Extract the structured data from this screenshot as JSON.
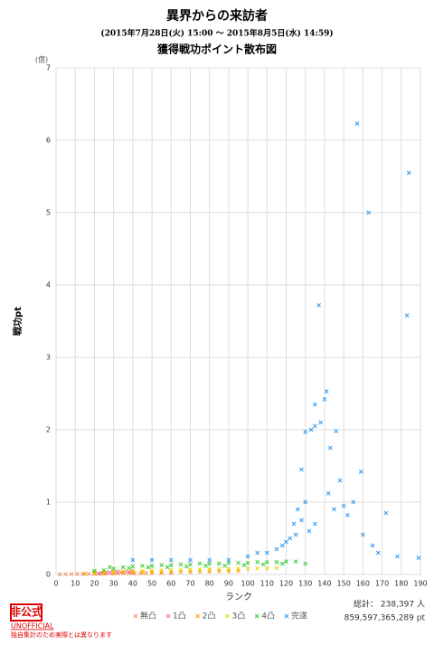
{
  "chart_data": {
    "type": "scatter",
    "title": "異界からの来訪者",
    "subtitle": "(2015年7月28日(火) 15:00 ～ 2015年8月5日(水) 14:59)",
    "chart_title": "獲得戦功ポイント散布図",
    "unit": "(億)",
    "x_label": "ランク",
    "y_label": "戦功pt",
    "xlim": [
      0,
      190
    ],
    "ylim": [
      0,
      7
    ],
    "xticks": [
      0,
      10,
      20,
      30,
      40,
      50,
      60,
      70,
      80,
      90,
      100,
      110,
      120,
      130,
      140,
      150,
      160,
      170,
      180,
      190
    ],
    "yticks": [
      0,
      1,
      2,
      3,
      4,
      5,
      6,
      7
    ],
    "grid": true,
    "legend": "bottom",
    "series": [
      {
        "name": "無凸",
        "color": "#f0906a",
        "x": [
          2,
          5,
          8,
          11,
          14,
          17,
          20,
          23,
          26,
          29,
          32,
          35,
          38,
          41,
          44,
          47,
          50,
          55,
          60
        ],
        "values": [
          0.003,
          0.004,
          0.005,
          0.006,
          0.007,
          0.008,
          0.009,
          0.01,
          0.012,
          0.013,
          0.014,
          0.015,
          0.016,
          0.017,
          0.018,
          0.019,
          0.02,
          0.02,
          0.02
        ]
      },
      {
        "name": "1凸",
        "color": "#ff6699",
        "x": [
          20,
          22,
          24,
          26,
          28,
          30,
          32,
          34,
          36,
          38,
          40
        ],
        "values": [
          0.01,
          0.015,
          0.02,
          0.025,
          0.03,
          0.035,
          0.04,
          0.03,
          0.035,
          0.04,
          0.04
        ]
      },
      {
        "name": "2凸",
        "color": "#ff9900",
        "x": [
          15,
          20,
          25,
          30,
          35,
          40,
          45,
          50,
          55,
          60,
          65,
          70,
          75,
          80,
          85,
          90,
          95
        ],
        "values": [
          0.01,
          0.012,
          0.015,
          0.018,
          0.02,
          0.022,
          0.025,
          0.027,
          0.03,
          0.032,
          0.035,
          0.037,
          0.04,
          0.042,
          0.045,
          0.047,
          0.05
        ]
      },
      {
        "name": "3凸",
        "color": "#e6d400",
        "x": [
          20,
          25,
          30,
          35,
          40,
          45,
          50,
          55,
          60,
          65,
          70,
          75,
          80,
          85,
          90,
          95,
          100,
          105,
          110,
          115
        ],
        "values": [
          0.03,
          0.035,
          0.04,
          0.045,
          0.05,
          0.05,
          0.055,
          0.06,
          0.06,
          0.065,
          0.065,
          0.07,
          0.07,
          0.075,
          0.075,
          0.08,
          0.08,
          0.085,
          0.085,
          0.09
        ]
      },
      {
        "name": "4凸",
        "color": "#33cc33",
        "x": [
          20,
          25,
          30,
          35,
          40,
          45,
          50,
          55,
          60,
          65,
          70,
          75,
          80,
          85,
          90,
          95,
          100,
          105,
          110,
          115,
          120,
          125,
          130,
          28,
          38,
          48,
          58,
          68,
          78,
          88,
          98,
          108,
          118
        ],
        "values": [
          0.05,
          0.06,
          0.08,
          0.1,
          0.11,
          0.12,
          0.12,
          0.13,
          0.13,
          0.14,
          0.14,
          0.15,
          0.15,
          0.15,
          0.16,
          0.16,
          0.16,
          0.17,
          0.17,
          0.17,
          0.18,
          0.18,
          0.15,
          0.1,
          0.09,
          0.1,
          0.1,
          0.11,
          0.12,
          0.12,
          0.13,
          0.14,
          0.15
        ]
      },
      {
        "name": "完遂",
        "color": "#3399ee",
        "x": [
          40,
          50,
          60,
          70,
          80,
          90,
          100,
          105,
          110,
          115,
          118,
          120,
          122,
          124,
          125,
          126,
          128,
          128,
          130,
          130,
          132,
          133,
          135,
          135,
          135,
          137,
          138,
          140,
          141,
          142,
          143,
          145,
          146,
          148,
          150,
          152,
          155,
          157,
          159,
          160,
          163,
          165,
          168,
          172,
          178,
          183,
          184,
          189
        ],
        "values": [
          0.2,
          0.2,
          0.2,
          0.2,
          0.2,
          0.2,
          0.25,
          0.3,
          0.3,
          0.35,
          0.4,
          0.45,
          0.5,
          0.7,
          0.55,
          0.9,
          0.75,
          1.45,
          1.0,
          1.97,
          0.6,
          2.0,
          0.7,
          2.05,
          2.35,
          3.72,
          2.1,
          2.42,
          2.53,
          1.12,
          1.75,
          0.9,
          1.98,
          1.3,
          0.95,
          0.82,
          1.0,
          6.23,
          1.42,
          0.55,
          5.0,
          0.4,
          0.3,
          0.85,
          0.25,
          3.58,
          5.55,
          0.23
        ]
      }
    ],
    "total_label": "総計：",
    "total_users": "238,397 人",
    "total_points": "859,597,365,289 pt",
    "badge": "非公式",
    "badge_en": "UNOFFICIAL",
    "disclaimer": "独自集計のため実際とは異なります"
  }
}
